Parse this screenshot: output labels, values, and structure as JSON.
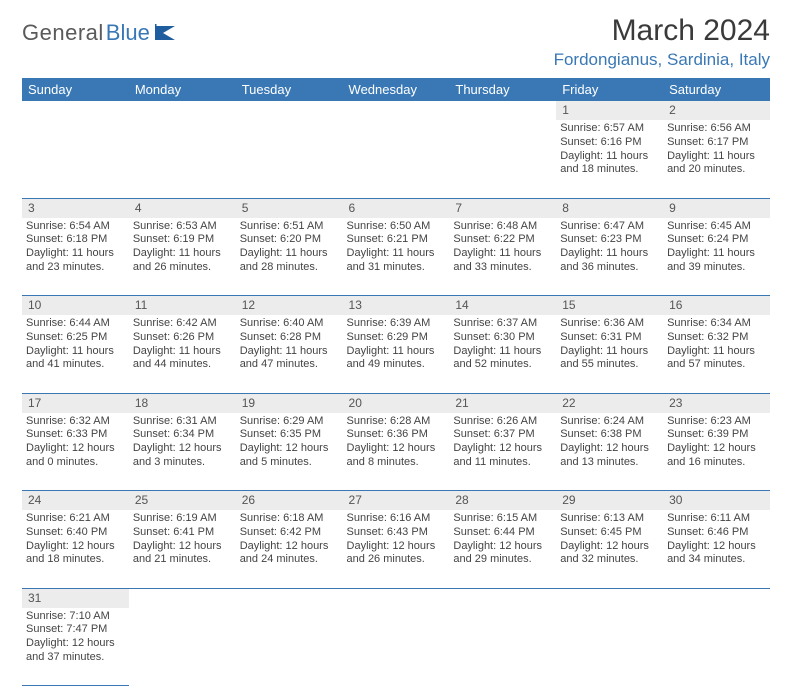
{
  "brand": {
    "general": "General",
    "blue": "Blue"
  },
  "title": "March 2024",
  "location": "Fordongianus, Sardinia, Italy",
  "colors": {
    "header_bg": "#3a78b5",
    "daynum_bg": "#ececec",
    "text": "#444444"
  },
  "day_headers": [
    "Sunday",
    "Monday",
    "Tuesday",
    "Wednesday",
    "Thursday",
    "Friday",
    "Saturday"
  ],
  "weeks": [
    [
      null,
      null,
      null,
      null,
      null,
      {
        "n": "1",
        "sr": "Sunrise: 6:57 AM",
        "ss": "Sunset: 6:16 PM",
        "dl": "Daylight: 11 hours and 18 minutes."
      },
      {
        "n": "2",
        "sr": "Sunrise: 6:56 AM",
        "ss": "Sunset: 6:17 PM",
        "dl": "Daylight: 11 hours and 20 minutes."
      }
    ],
    [
      {
        "n": "3",
        "sr": "Sunrise: 6:54 AM",
        "ss": "Sunset: 6:18 PM",
        "dl": "Daylight: 11 hours and 23 minutes."
      },
      {
        "n": "4",
        "sr": "Sunrise: 6:53 AM",
        "ss": "Sunset: 6:19 PM",
        "dl": "Daylight: 11 hours and 26 minutes."
      },
      {
        "n": "5",
        "sr": "Sunrise: 6:51 AM",
        "ss": "Sunset: 6:20 PM",
        "dl": "Daylight: 11 hours and 28 minutes."
      },
      {
        "n": "6",
        "sr": "Sunrise: 6:50 AM",
        "ss": "Sunset: 6:21 PM",
        "dl": "Daylight: 11 hours and 31 minutes."
      },
      {
        "n": "7",
        "sr": "Sunrise: 6:48 AM",
        "ss": "Sunset: 6:22 PM",
        "dl": "Daylight: 11 hours and 33 minutes."
      },
      {
        "n": "8",
        "sr": "Sunrise: 6:47 AM",
        "ss": "Sunset: 6:23 PM",
        "dl": "Daylight: 11 hours and 36 minutes."
      },
      {
        "n": "9",
        "sr": "Sunrise: 6:45 AM",
        "ss": "Sunset: 6:24 PM",
        "dl": "Daylight: 11 hours and 39 minutes."
      }
    ],
    [
      {
        "n": "10",
        "sr": "Sunrise: 6:44 AM",
        "ss": "Sunset: 6:25 PM",
        "dl": "Daylight: 11 hours and 41 minutes."
      },
      {
        "n": "11",
        "sr": "Sunrise: 6:42 AM",
        "ss": "Sunset: 6:26 PM",
        "dl": "Daylight: 11 hours and 44 minutes."
      },
      {
        "n": "12",
        "sr": "Sunrise: 6:40 AM",
        "ss": "Sunset: 6:28 PM",
        "dl": "Daylight: 11 hours and 47 minutes."
      },
      {
        "n": "13",
        "sr": "Sunrise: 6:39 AM",
        "ss": "Sunset: 6:29 PM",
        "dl": "Daylight: 11 hours and 49 minutes."
      },
      {
        "n": "14",
        "sr": "Sunrise: 6:37 AM",
        "ss": "Sunset: 6:30 PM",
        "dl": "Daylight: 11 hours and 52 minutes."
      },
      {
        "n": "15",
        "sr": "Sunrise: 6:36 AM",
        "ss": "Sunset: 6:31 PM",
        "dl": "Daylight: 11 hours and 55 minutes."
      },
      {
        "n": "16",
        "sr": "Sunrise: 6:34 AM",
        "ss": "Sunset: 6:32 PM",
        "dl": "Daylight: 11 hours and 57 minutes."
      }
    ],
    [
      {
        "n": "17",
        "sr": "Sunrise: 6:32 AM",
        "ss": "Sunset: 6:33 PM",
        "dl": "Daylight: 12 hours and 0 minutes."
      },
      {
        "n": "18",
        "sr": "Sunrise: 6:31 AM",
        "ss": "Sunset: 6:34 PM",
        "dl": "Daylight: 12 hours and 3 minutes."
      },
      {
        "n": "19",
        "sr": "Sunrise: 6:29 AM",
        "ss": "Sunset: 6:35 PM",
        "dl": "Daylight: 12 hours and 5 minutes."
      },
      {
        "n": "20",
        "sr": "Sunrise: 6:28 AM",
        "ss": "Sunset: 6:36 PM",
        "dl": "Daylight: 12 hours and 8 minutes."
      },
      {
        "n": "21",
        "sr": "Sunrise: 6:26 AM",
        "ss": "Sunset: 6:37 PM",
        "dl": "Daylight: 12 hours and 11 minutes."
      },
      {
        "n": "22",
        "sr": "Sunrise: 6:24 AM",
        "ss": "Sunset: 6:38 PM",
        "dl": "Daylight: 12 hours and 13 minutes."
      },
      {
        "n": "23",
        "sr": "Sunrise: 6:23 AM",
        "ss": "Sunset: 6:39 PM",
        "dl": "Daylight: 12 hours and 16 minutes."
      }
    ],
    [
      {
        "n": "24",
        "sr": "Sunrise: 6:21 AM",
        "ss": "Sunset: 6:40 PM",
        "dl": "Daylight: 12 hours and 18 minutes."
      },
      {
        "n": "25",
        "sr": "Sunrise: 6:19 AM",
        "ss": "Sunset: 6:41 PM",
        "dl": "Daylight: 12 hours and 21 minutes."
      },
      {
        "n": "26",
        "sr": "Sunrise: 6:18 AM",
        "ss": "Sunset: 6:42 PM",
        "dl": "Daylight: 12 hours and 24 minutes."
      },
      {
        "n": "27",
        "sr": "Sunrise: 6:16 AM",
        "ss": "Sunset: 6:43 PM",
        "dl": "Daylight: 12 hours and 26 minutes."
      },
      {
        "n": "28",
        "sr": "Sunrise: 6:15 AM",
        "ss": "Sunset: 6:44 PM",
        "dl": "Daylight: 12 hours and 29 minutes."
      },
      {
        "n": "29",
        "sr": "Sunrise: 6:13 AM",
        "ss": "Sunset: 6:45 PM",
        "dl": "Daylight: 12 hours and 32 minutes."
      },
      {
        "n": "30",
        "sr": "Sunrise: 6:11 AM",
        "ss": "Sunset: 6:46 PM",
        "dl": "Daylight: 12 hours and 34 minutes."
      }
    ],
    [
      {
        "n": "31",
        "sr": "Sunrise: 7:10 AM",
        "ss": "Sunset: 7:47 PM",
        "dl": "Daylight: 12 hours and 37 minutes."
      },
      null,
      null,
      null,
      null,
      null,
      null
    ]
  ]
}
